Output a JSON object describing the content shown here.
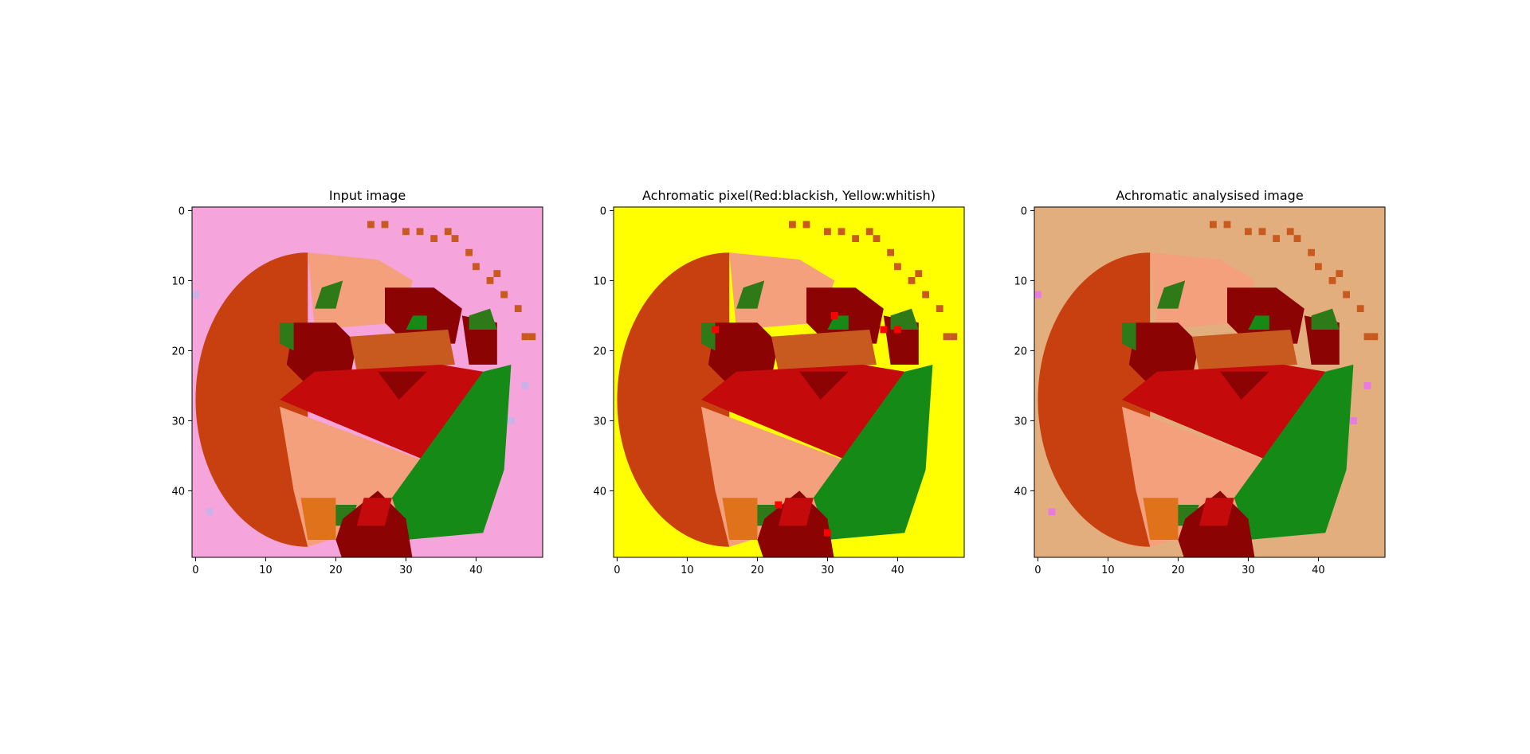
{
  "figure": {
    "background": "#ffffff"
  },
  "chart_data": [
    {
      "type": "heatmap",
      "title": "Input image",
      "background_color": "#f5a5dc",
      "xlim": [
        -0.5,
        49.5
      ],
      "ylim": [
        49.5,
        -0.5
      ],
      "xticks": [
        0,
        10,
        20,
        30,
        40
      ],
      "yticks": [
        0,
        10,
        20,
        30,
        40
      ],
      "grid": false
    },
    {
      "type": "heatmap",
      "title": "Achromatic pixel(Red:blackish, Yellow:whitish)",
      "background_color": "#ffff00",
      "xlim": [
        -0.5,
        49.5
      ],
      "ylim": [
        49.5,
        -0.5
      ],
      "xticks": [
        0,
        10,
        20,
        30,
        40
      ],
      "yticks": [
        0,
        10,
        20,
        30,
        40
      ],
      "grid": false
    },
    {
      "type": "heatmap",
      "title": "Achromatic analysised image",
      "background_color": "#e2ae7e",
      "xlim": [
        -0.5,
        49.5
      ],
      "ylim": [
        49.5,
        -0.5
      ],
      "xticks": [
        0,
        10,
        20,
        30,
        40
      ],
      "yticks": [
        0,
        10,
        20,
        30,
        40
      ],
      "grid": false
    }
  ],
  "scene_colors": {
    "orange_disc": "#c94010",
    "dark_red": "#8c0303",
    "red": "#c40a0a",
    "salmon": "#f4a07c",
    "green": "#168a16",
    "dark_green": "#2e7a18",
    "orange": "#e0721c",
    "brown_orange": "#c85a20",
    "pink_speck": "#e87ae0"
  }
}
